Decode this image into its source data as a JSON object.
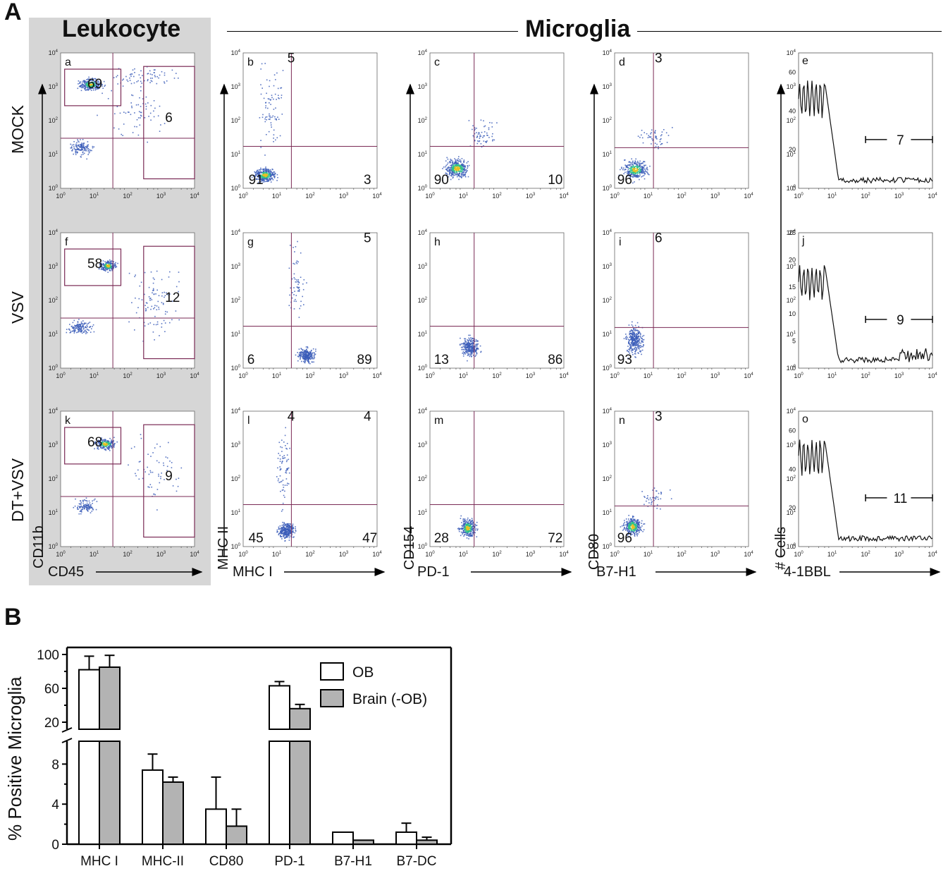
{
  "panel_labels": {
    "A": "A",
    "B": "B"
  },
  "headers": {
    "leukocyte": "Leukocyte",
    "microglia": "Microglia"
  },
  "row_labels": [
    "MOCK",
    "VSV",
    "DT+VSV"
  ],
  "axis_labels": {
    "leuko": {
      "x": "CD45",
      "y": "CD11b"
    },
    "mhc": {
      "x": "MHC I",
      "y": "MHC II"
    },
    "pd1": {
      "x": "PD-1",
      "y": "CD154"
    },
    "b7": {
      "x": "B7-H1",
      "y": "CD80"
    },
    "hist": {
      "x": "4-1BBL",
      "y": "# Cells"
    }
  },
  "flow_panels": [
    {
      "id": "a",
      "col": "leuko",
      "row": 0,
      "numbers": [
        "69",
        "6"
      ]
    },
    {
      "id": "f",
      "col": "leuko",
      "row": 1,
      "numbers": [
        "58",
        "12"
      ]
    },
    {
      "id": "k",
      "col": "leuko",
      "row": 2,
      "numbers": [
        "68",
        "9"
      ]
    },
    {
      "id": "b",
      "col": "mhc",
      "row": 0,
      "numbers": [
        "5",
        "91",
        "3"
      ]
    },
    {
      "id": "g",
      "col": "mhc",
      "row": 1,
      "numbers": [
        "5",
        "6",
        "89"
      ]
    },
    {
      "id": "l",
      "col": "mhc",
      "row": 2,
      "numbers": [
        "4",
        "4",
        "45",
        "47"
      ]
    },
    {
      "id": "c",
      "col": "pd1",
      "row": 0,
      "numbers": [
        "90",
        "10"
      ]
    },
    {
      "id": "h",
      "col": "pd1",
      "row": 1,
      "numbers": [
        "13",
        "86"
      ]
    },
    {
      "id": "m",
      "col": "pd1",
      "row": 2,
      "numbers": [
        "28",
        "72"
      ]
    },
    {
      "id": "d",
      "col": "b7",
      "row": 0,
      "numbers": [
        "3",
        "96"
      ]
    },
    {
      "id": "i",
      "col": "b7",
      "row": 1,
      "numbers": [
        "6",
        "93"
      ]
    },
    {
      "id": "n",
      "col": "b7",
      "row": 2,
      "numbers": [
        "3",
        "96"
      ]
    },
    {
      "id": "e",
      "col": "hist",
      "row": 0,
      "numbers": [
        "7"
      ],
      "yticks": [
        "0",
        "20",
        "40",
        "60"
      ]
    },
    {
      "id": "j",
      "col": "hist",
      "row": 1,
      "numbers": [
        "9"
      ],
      "yticks": [
        "0",
        "5",
        "10",
        "15",
        "20",
        "25"
      ]
    },
    {
      "id": "o",
      "col": "hist",
      "row": 2,
      "numbers": [
        "11"
      ],
      "yticks": [
        "0",
        "20",
        "40",
        "60"
      ]
    }
  ],
  "log_ticks": {
    "base": "10",
    "exps": [
      "0",
      "1",
      "2",
      "3",
      "4"
    ]
  },
  "chart_data": {
    "type": "bar",
    "ylabel": "% Positive Microglia",
    "categories": [
      "MHC I",
      "MHC-II",
      "CD80",
      "PD-1",
      "B7-H1",
      "B7-DC"
    ],
    "series": [
      {
        "name": "OB",
        "color": "#ffffff",
        "values": [
          82,
          7.4,
          3.5,
          63,
          1.2,
          1.2
        ],
        "errors": [
          16,
          1.6,
          3.2,
          5,
          0,
          0.9
        ]
      },
      {
        "name": "Brain (-OB)",
        "color": "#b3b3b3",
        "values": [
          85,
          6.2,
          1.8,
          36,
          0.4,
          0.4
        ],
        "errors": [
          14,
          0.5,
          1.7,
          5,
          0,
          0.3
        ]
      }
    ],
    "yticks_upper": [
      "20",
      "60",
      "100"
    ],
    "yticks_lower": [
      "0",
      "4",
      "8"
    ],
    "y_break": true
  }
}
